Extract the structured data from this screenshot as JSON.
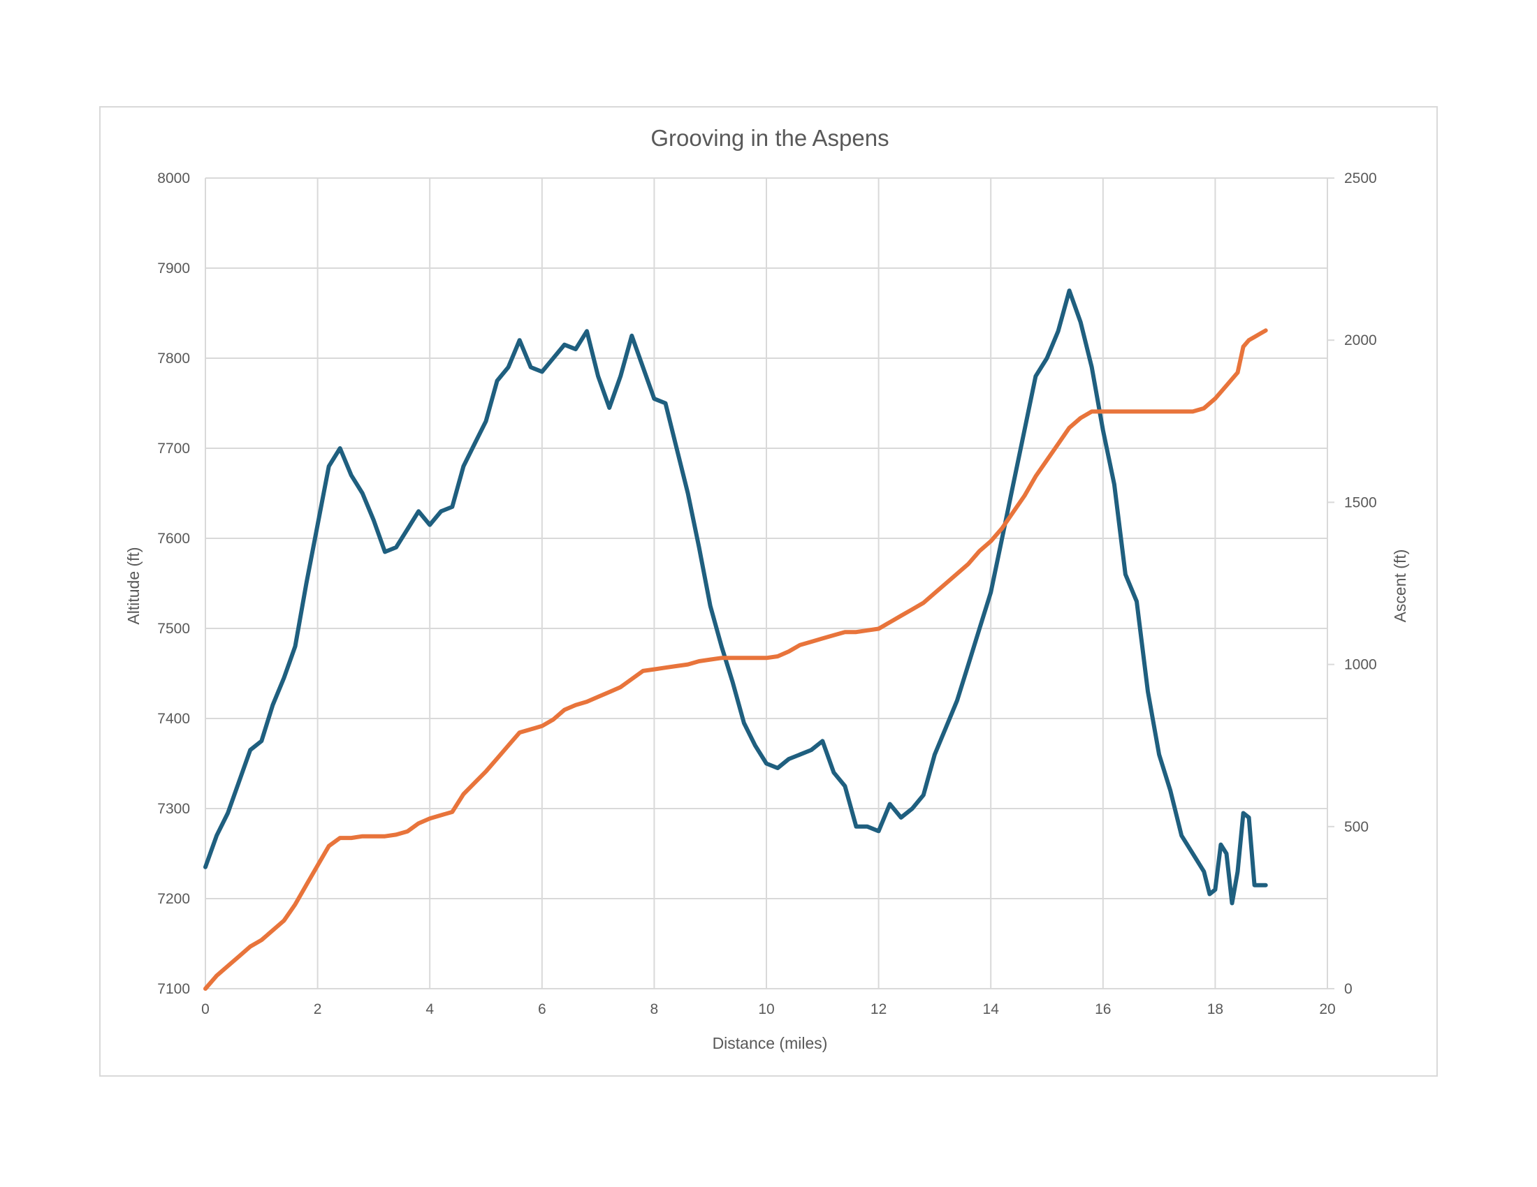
{
  "chart_data": {
    "type": "line",
    "title": "Grooving in the Aspens",
    "xlabel": "Distance (miles)",
    "ylabel": "Altitude (ft)",
    "y2label": "Ascent (ft)",
    "xlim": [
      0,
      20
    ],
    "ylim": [
      7100,
      8000
    ],
    "y2lim": [
      0,
      2500
    ],
    "x_ticks": [
      "0",
      "2",
      "4",
      "6",
      "8",
      "10",
      "12",
      "14",
      "16",
      "18",
      "20"
    ],
    "y_ticks": [
      "7100",
      "7200",
      "7300",
      "7400",
      "7500",
      "7600",
      "7700",
      "7800",
      "7900",
      "8000"
    ],
    "y2_ticks": [
      "0",
      "500",
      "1000",
      "1500",
      "2000",
      "2500"
    ],
    "grid": true,
    "legend": "none",
    "colors": {
      "altitude": "#1f5f7f",
      "ascent": "#e8743b",
      "grid": "#d9d9d9",
      "text": "#595959"
    },
    "series": [
      {
        "axis": "left",
        "x": [
          0,
          0.2,
          0.4,
          0.6,
          0.8,
          1.0,
          1.2,
          1.4,
          1.6,
          1.8,
          2.0,
          2.2,
          2.4,
          2.6,
          2.8,
          3.0,
          3.2,
          3.4,
          3.6,
          3.8,
          4.0,
          4.2,
          4.4,
          4.6,
          4.8,
          5.0,
          5.2,
          5.4,
          5.6,
          5.8,
          6.0,
          6.2,
          6.4,
          6.6,
          6.8,
          7.0,
          7.2,
          7.4,
          7.6,
          7.8,
          8.0,
          8.2,
          8.4,
          8.6,
          8.8,
          9.0,
          9.2,
          9.4,
          9.6,
          9.8,
          10.0,
          10.2,
          10.4,
          10.6,
          10.8,
          11.0,
          11.2,
          11.4,
          11.6,
          11.8,
          12.0,
          12.2,
          12.4,
          12.6,
          12.8,
          13.0,
          13.2,
          13.4,
          13.6,
          13.8,
          14.0,
          14.2,
          14.4,
          14.6,
          14.8,
          15.0,
          15.2,
          15.4,
          15.6,
          15.8,
          16.0,
          16.2,
          16.4,
          16.6,
          16.8,
          17.0,
          17.2,
          17.4,
          17.6,
          17.8,
          17.9,
          18.0,
          18.1,
          18.2,
          18.3,
          18.4,
          18.5,
          18.6,
          18.7,
          18.8,
          18.9
        ],
        "values": [
          7235,
          7270,
          7295,
          7330,
          7365,
          7375,
          7415,
          7445,
          7480,
          7550,
          7615,
          7680,
          7700,
          7670,
          7650,
          7620,
          7585,
          7590,
          7610,
          7630,
          7615,
          7630,
          7635,
          7680,
          7705,
          7730,
          7775,
          7790,
          7820,
          7790,
          7785,
          7800,
          7815,
          7810,
          7830,
          7780,
          7745,
          7780,
          7825,
          7790,
          7755,
          7750,
          7700,
          7650,
          7590,
          7525,
          7480,
          7440,
          7395,
          7370,
          7350,
          7345,
          7355,
          7360,
          7365,
          7375,
          7340,
          7325,
          7280,
          7280,
          7275,
          7305,
          7290,
          7300,
          7315,
          7360,
          7390,
          7420,
          7460,
          7500,
          7540,
          7600,
          7660,
          7720,
          7780,
          7800,
          7830,
          7875,
          7840,
          7790,
          7720,
          7660,
          7560,
          7530,
          7430,
          7360,
          7320,
          7270,
          7250,
          7230,
          7205,
          7210,
          7260,
          7250,
          7195,
          7230,
          7295,
          7290,
          7215,
          7215,
          7215
        ]
      },
      {
        "axis": "right",
        "x": [
          0,
          0.2,
          0.4,
          0.6,
          0.8,
          1.0,
          1.2,
          1.4,
          1.6,
          1.8,
          2.0,
          2.2,
          2.4,
          2.6,
          2.8,
          3.0,
          3.2,
          3.4,
          3.6,
          3.8,
          4.0,
          4.2,
          4.4,
          4.6,
          4.8,
          5.0,
          5.2,
          5.4,
          5.6,
          5.8,
          6.0,
          6.2,
          6.4,
          6.6,
          6.8,
          7.0,
          7.2,
          7.4,
          7.6,
          7.8,
          8.0,
          8.2,
          8.4,
          8.6,
          8.8,
          9.0,
          9.2,
          9.4,
          9.6,
          9.8,
          10.0,
          10.2,
          10.4,
          10.6,
          10.8,
          11.0,
          11.2,
          11.4,
          11.6,
          11.8,
          12.0,
          12.2,
          12.4,
          12.6,
          12.8,
          13.0,
          13.2,
          13.4,
          13.6,
          13.8,
          14.0,
          14.2,
          14.4,
          14.6,
          14.8,
          15.0,
          15.2,
          15.4,
          15.6,
          15.8,
          16.0,
          16.2,
          16.4,
          16.6,
          16.8,
          17.0,
          17.2,
          17.4,
          17.6,
          17.8,
          18.0,
          18.2,
          18.4,
          18.5,
          18.6,
          18.7,
          18.8,
          18.9
        ],
        "values": [
          0,
          40,
          70,
          100,
          130,
          150,
          180,
          210,
          260,
          320,
          380,
          440,
          465,
          465,
          470,
          470,
          470,
          475,
          485,
          510,
          525,
          535,
          545,
          600,
          635,
          670,
          710,
          750,
          790,
          800,
          810,
          830,
          860,
          875,
          885,
          900,
          915,
          930,
          955,
          980,
          985,
          990,
          995,
          1000,
          1010,
          1015,
          1020,
          1020,
          1020,
          1020,
          1020,
          1025,
          1040,
          1060,
          1070,
          1080,
          1090,
          1100,
          1100,
          1105,
          1110,
          1130,
          1150,
          1170,
          1190,
          1220,
          1250,
          1280,
          1310,
          1350,
          1380,
          1420,
          1470,
          1520,
          1580,
          1630,
          1680,
          1730,
          1760,
          1780,
          1780,
          1780,
          1780,
          1780,
          1780,
          1780,
          1780,
          1780,
          1780,
          1790,
          1820,
          1860,
          1900,
          1980,
          2000,
          2010,
          2020,
          2030
        ]
      }
    ]
  }
}
